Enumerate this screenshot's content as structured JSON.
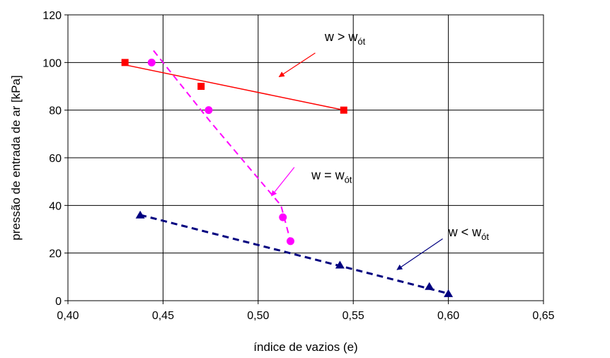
{
  "chart_data": {
    "type": "scatter",
    "xlabel": "índice de vazios (e)",
    "ylabel": "pressão de entrada de ar [kPa]",
    "xlim": [
      0.4,
      0.65
    ],
    "ylim": [
      0,
      120
    ],
    "xticks": [
      0.4,
      0.45,
      0.5,
      0.55,
      0.6,
      0.65
    ],
    "xtick_labels": [
      "0,40",
      "0,45",
      "0,50",
      "0,55",
      "0,60",
      "0,65"
    ],
    "yticks": [
      0,
      20,
      40,
      60,
      80,
      100,
      120
    ],
    "ytick_labels": [
      "0",
      "20",
      "40",
      "60",
      "80",
      "100",
      "120"
    ],
    "grid": true,
    "series": [
      {
        "marker": "square",
        "color": "#ff0000",
        "points": [
          [
            0.43,
            100
          ],
          [
            0.47,
            90
          ],
          [
            0.545,
            80
          ]
        ],
        "trend": {
          "style": "solid",
          "from": [
            0.43,
            99
          ],
          "to": [
            0.545,
            80
          ]
        }
      },
      {
        "marker": "circle",
        "color": "#ff00ff",
        "points": [
          [
            0.444,
            100
          ],
          [
            0.474,
            80
          ],
          [
            0.513,
            35
          ],
          [
            0.517,
            25
          ]
        ],
        "trend": {
          "style": "dashed",
          "path": [
            [
              0.445,
              105
            ],
            [
              0.475,
              75
            ],
            [
              0.512,
              40
            ],
            [
              0.517,
              25
            ]
          ]
        }
      },
      {
        "marker": "triangle",
        "color": "#000080",
        "points": [
          [
            0.438,
            36
          ],
          [
            0.543,
            15
          ],
          [
            0.59,
            6
          ],
          [
            0.6,
            3
          ]
        ],
        "trend": {
          "style": "dashed",
          "from": [
            0.438,
            36
          ],
          "to": [
            0.6,
            3
          ]
        }
      }
    ],
    "annotations": [
      {
        "prefix": "w > w",
        "sub": "ót",
        "color": "#ff0000",
        "text_at": [
          0.535,
          109
        ],
        "arrow_from": [
          0.53,
          104
        ],
        "arrow_to": [
          0.511,
          94
        ]
      },
      {
        "prefix": "w = w",
        "sub": "ót",
        "color": "#ff00ff",
        "text_at": [
          0.528,
          51
        ],
        "arrow_from": [
          0.519,
          56
        ],
        "arrow_to": [
          0.507,
          44
        ]
      },
      {
        "prefix": "w < w",
        "sub": "ót",
        "color": "#000080",
        "text_at": [
          0.6,
          27
        ],
        "arrow_from": [
          0.597,
          26
        ],
        "arrow_to": [
          0.573,
          13
        ]
      }
    ]
  }
}
